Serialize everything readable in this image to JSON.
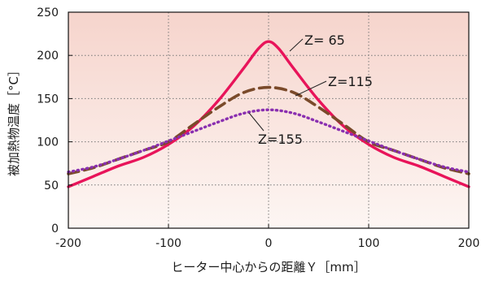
{
  "chart_data": {
    "type": "line",
    "title": "",
    "xlabel": "ヒーター中心からの距離Ｙ［mm］",
    "ylabel": "被加熱物温度［°C］",
    "xlim": [
      -200,
      200
    ],
    "ylim": [
      0,
      250
    ],
    "xticks": [
      -200,
      -100,
      0,
      100,
      200
    ],
    "yticks": [
      0,
      50,
      100,
      150,
      200,
      250
    ],
    "grid": true,
    "legend": "none",
    "plot_background": {
      "top": "#f6d4cc",
      "bottom": "#fdf6f3"
    },
    "series": [
      {
        "name": "Z= 65",
        "color": "#e8145a",
        "style": "solid",
        "x": [
          -200,
          -175,
          -150,
          -125,
          -100,
          -75,
          -50,
          -25,
          -10,
          0,
          10,
          25,
          50,
          75,
          100,
          125,
          150,
          175,
          200
        ],
        "y": [
          48,
          60,
          72,
          82,
          97,
          118,
          148,
          185,
          208,
          216,
          208,
          185,
          148,
          118,
          97,
          82,
          72,
          60,
          48
        ]
      },
      {
        "name": "Z=115",
        "color": "#7a4a2a",
        "style": "dashed",
        "x": [
          -200,
          -175,
          -150,
          -125,
          -100,
          -75,
          -50,
          -25,
          0,
          25,
          50,
          75,
          100,
          125,
          150,
          175,
          200
        ],
        "y": [
          63,
          70,
          80,
          90,
          100,
          120,
          140,
          157,
          163,
          157,
          140,
          120,
          100,
          90,
          80,
          70,
          63
        ]
      },
      {
        "name": "Z=155",
        "color": "#8a2fb0",
        "style": "dotted",
        "x": [
          -200,
          -175,
          -150,
          -125,
          -100,
          -75,
          -50,
          -25,
          0,
          25,
          50,
          75,
          100,
          125,
          150,
          175,
          200
        ],
        "y": [
          65,
          71,
          80,
          90,
          101,
          112,
          123,
          133,
          137,
          133,
          123,
          112,
          101,
          90,
          80,
          71,
          65
        ]
      }
    ],
    "annotations": [
      {
        "text": "Z= 65",
        "series": "Z= 65",
        "x": 40,
        "y": 215
      },
      {
        "text": "Z=115",
        "series": "Z=115",
        "x": 62,
        "y": 176
      },
      {
        "text": "Z=155",
        "series": "Z=155",
        "x": -10,
        "y": 100
      }
    ]
  }
}
